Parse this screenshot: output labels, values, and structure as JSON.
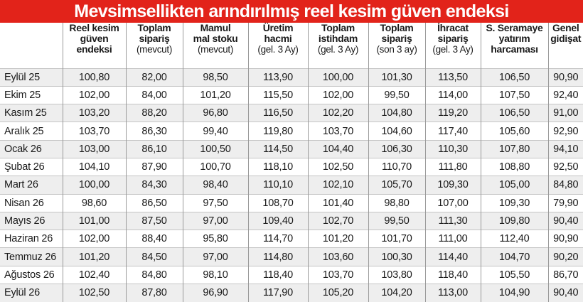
{
  "title": "Mevsimsellikten arındırılmış reel kesim güven endeksi",
  "columns": [
    {
      "main": "",
      "main2": "",
      "main3": "",
      "sub": ""
    },
    {
      "main": "Reel kesim",
      "main2": "güven",
      "main3": "endeksi",
      "sub": ""
    },
    {
      "main": "Toplam",
      "main2": "sipariş",
      "main3": "",
      "sub": "(mevcut)"
    },
    {
      "main": "Mamul",
      "main2": "mal stoku",
      "main3": "",
      "sub": "(mevcut)"
    },
    {
      "main": "Üretim",
      "main2": "hacmi",
      "main3": "",
      "sub": "(gel. 3 Ay)"
    },
    {
      "main": "Toplam",
      "main2": "istihdam",
      "main3": "",
      "sub": "(gel. 3 Ay)"
    },
    {
      "main": "Toplam",
      "main2": "sipariş",
      "main3": "",
      "sub": "(son 3 ay)"
    },
    {
      "main": "İhracat",
      "main2": "sipariş",
      "main3": "",
      "sub": "(gel. 3 Ay)"
    },
    {
      "main": "S. Seramaye",
      "main2": "yatırım",
      "main3": "harcaması",
      "sub": ""
    },
    {
      "main": "Genel",
      "main2": "gidişat",
      "main3": "",
      "sub": ""
    }
  ],
  "rows": [
    [
      "Eylül 25",
      "100,80",
      "82,00",
      "98,50",
      "113,90",
      "100,00",
      "101,30",
      "113,50",
      "106,50",
      "90,90"
    ],
    [
      "Ekim 25",
      "102,00",
      "84,00",
      "101,20",
      "115,50",
      "102,00",
      "99,50",
      "114,00",
      "107,50",
      "92,40"
    ],
    [
      "Kasım 25",
      "103,20",
      "88,20",
      "96,80",
      "116,50",
      "102,20",
      "104,80",
      "119,20",
      "106,50",
      "91,00"
    ],
    [
      "Aralık 25",
      "103,70",
      "86,30",
      "99,40",
      "119,80",
      "103,70",
      "104,60",
      "117,40",
      "105,60",
      "92,90"
    ],
    [
      "Ocak 26",
      "103,00",
      "86,10",
      "100,50",
      "114,50",
      "104,40",
      "106,30",
      "110,30",
      "107,80",
      "94,10"
    ],
    [
      "Şubat 26",
      "104,10",
      "87,90",
      "100,70",
      "118,10",
      "102,50",
      "110,70",
      "111,80",
      "108,80",
      "92,50"
    ],
    [
      "Mart 26",
      "100,00",
      "84,30",
      "98,40",
      "110,10",
      "102,10",
      "105,70",
      "109,30",
      "105,00",
      "84,80"
    ],
    [
      "Nisan 26",
      "98,60",
      "86,50",
      "97,50",
      "108,70",
      "101,40",
      "98,80",
      "107,00",
      "109,30",
      "79,90"
    ],
    [
      "Mayıs 26",
      "101,00",
      "87,50",
      "97,00",
      "109,40",
      "102,70",
      "99,50",
      "111,30",
      "109,80",
      "90,40"
    ],
    [
      "Haziran 26",
      "102,00",
      "88,40",
      "95,80",
      "114,70",
      "101,20",
      "101,70",
      "111,00",
      "112,40",
      "90,90"
    ],
    [
      "Temmuz 26",
      "101,20",
      "84,50",
      "97,00",
      "114,80",
      "103,60",
      "100,30",
      "114,40",
      "104,70",
      "90,20"
    ],
    [
      "Ağustos 26",
      "102,40",
      "84,80",
      "98,10",
      "118,40",
      "103,70",
      "103,80",
      "118,40",
      "105,50",
      "86,70"
    ],
    [
      "Eylül 26",
      "102,50",
      "87,80",
      "96,90",
      "117,90",
      "105,20",
      "104,20",
      "113,00",
      "104,90",
      "90,40"
    ]
  ],
  "colors": {
    "title_bg": "#e2231a",
    "title_fg": "#ffffff",
    "row_shade": "#eeeeee"
  }
}
